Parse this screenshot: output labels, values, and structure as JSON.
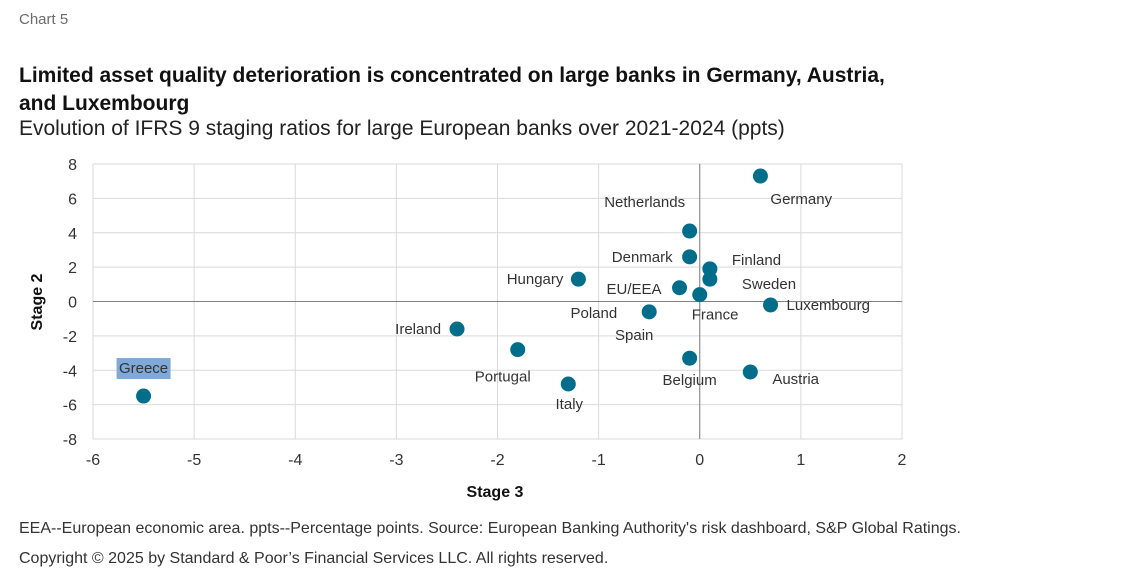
{
  "header": {
    "chart_label": "Chart 5",
    "title": "Limited asset quality deterioration is concentrated on large banks in Germany, Austria, and Luxembourg",
    "subtitle": "Evolution of IFRS 9 staging ratios for large European banks over 2021-2024 (ppts)"
  },
  "footer": {
    "note": "EEA--European economic area. ppts--Percentage points. Source: European Banking Authority's risk dashboard, S&P Global Ratings.",
    "copyright": "Copyright © 2025 by Standard & Poor’s Financial Services LLC. All rights reserved."
  },
  "colors": {
    "marker": "#006e8a",
    "highlight": "#7ea9d9",
    "grid": "#d9d9d9",
    "zero_axis": "#808080"
  },
  "chart_data": {
    "type": "scatter",
    "title": "Limited asset quality deterioration is concentrated on large banks in Germany, Austria, and Luxembourg",
    "subtitle": "Evolution of IFRS 9 staging ratios for large European banks over 2021-2024 (ppts)",
    "xlabel": "Stage 3",
    "ylabel": "Stage 2",
    "xlim": [
      -6,
      2
    ],
    "ylim": [
      -8,
      8
    ],
    "xticks": [
      -6,
      -5,
      -4,
      -3,
      -2,
      -1,
      0,
      1,
      2
    ],
    "yticks": [
      8,
      6,
      4,
      2,
      0,
      -2,
      -4,
      -6,
      -8
    ],
    "grid": true,
    "legend": "none",
    "highlighted": "Greece",
    "points": [
      {
        "label": "Germany",
        "x": 0.6,
        "y": 7.3
      },
      {
        "label": "Netherlands",
        "x": -0.1,
        "y": 4.1
      },
      {
        "label": "Denmark",
        "x": -0.1,
        "y": 2.6
      },
      {
        "label": "Finland",
        "x": 0.1,
        "y": 1.9
      },
      {
        "label": "Sweden",
        "x": 0.1,
        "y": 1.3
      },
      {
        "label": "Hungary",
        "x": -1.2,
        "y": 1.3
      },
      {
        "label": "EU/EEA",
        "x": -0.2,
        "y": 0.8
      },
      {
        "label": "France",
        "x": 0.0,
        "y": 0.4
      },
      {
        "label": "Luxembourg",
        "x": 0.7,
        "y": -0.2
      },
      {
        "label": "Poland",
        "x": -0.5,
        "y": -0.6
      },
      {
        "label": "Spain",
        "x": -0.5,
        "y": -0.6
      },
      {
        "label": "Ireland",
        "x": -2.4,
        "y": -1.6
      },
      {
        "label": "Portugal",
        "x": -1.8,
        "y": -2.8
      },
      {
        "label": "Belgium",
        "x": -0.1,
        "y": -3.3
      },
      {
        "label": "Austria",
        "x": 0.5,
        "y": -4.1
      },
      {
        "label": "Italy",
        "x": -1.3,
        "y": -4.8
      },
      {
        "label": "Greece",
        "x": -5.5,
        "y": -5.5
      }
    ]
  }
}
